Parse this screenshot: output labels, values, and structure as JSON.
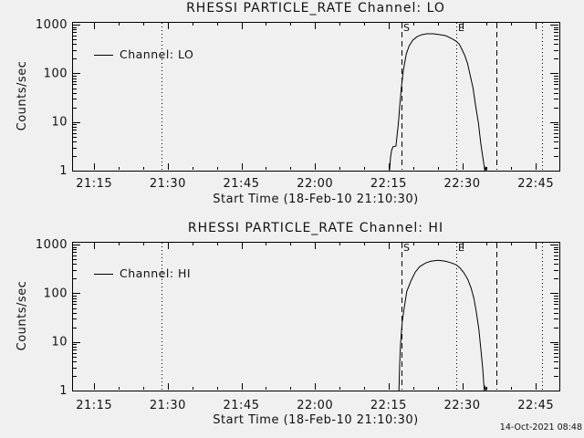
{
  "page": {
    "background_color": "#f0f0f0",
    "line_color": "#000000",
    "timestamp": "14-Oct-2021 08:48"
  },
  "chart_data": [
    {
      "type": "line",
      "title": "RHESSI PARTICLE_RATE Channel: LO",
      "xlabel": "Start Time (18-Feb-10 21:10:30)",
      "ylabel": "Counts/sec",
      "legend": {
        "position": "top-left",
        "label": "Channel: LO"
      },
      "yscale": "log",
      "ylim": [
        1,
        1150
      ],
      "x_minutes_range": [
        0,
        99.3
      ],
      "x_axis_start": "21:10:30",
      "x_ticks": [
        {
          "t": 4.5,
          "label": "21:15"
        },
        {
          "t": 19.5,
          "label": "21:30"
        },
        {
          "t": 34.5,
          "label": "21:45"
        },
        {
          "t": 49.5,
          "label": "22:00"
        },
        {
          "t": 64.5,
          "label": "22:15"
        },
        {
          "t": 79.5,
          "label": "22:30"
        },
        {
          "t": 94.5,
          "label": "22:45"
        }
      ],
      "x_minor_step_min": 5,
      "y_ticks": [
        {
          "v": 1000,
          "label": "1000"
        },
        {
          "v": 100,
          "label": "100"
        },
        {
          "v": 10,
          "label": "10"
        },
        {
          "v": 1,
          "label": "1"
        }
      ],
      "vlines": [
        {
          "t": 18.2,
          "style": "dotted",
          "label": ""
        },
        {
          "t": 67.2,
          "style": "dashed",
          "label": "S"
        },
        {
          "t": 78.2,
          "style": "dotted",
          "label": "E"
        },
        {
          "t": 86.4,
          "style": "dashed",
          "label": ""
        },
        {
          "t": 95.7,
          "style": "dotted",
          "label": ""
        }
      ],
      "series": [
        {
          "name": "Channel: LO",
          "points_min_counts": [
            [
              64.7,
              1
            ],
            [
              64.9,
              1.9
            ],
            [
              65.1,
              2.6
            ],
            [
              65.4,
              3.1
            ],
            [
              66.0,
              3.2
            ],
            [
              66.2,
              5
            ],
            [
              66.5,
              9.5
            ],
            [
              66.8,
              23
            ],
            [
              67.1,
              50
            ],
            [
              67.5,
              115
            ],
            [
              68.1,
              250
            ],
            [
              68.7,
              370
            ],
            [
              69.4,
              480
            ],
            [
              70.3,
              570
            ],
            [
              71.2,
              625
            ],
            [
              72.3,
              655
            ],
            [
              73.6,
              655
            ],
            [
              74.9,
              628
            ],
            [
              76.1,
              600
            ],
            [
              77.0,
              545
            ],
            [
              77.7,
              500
            ],
            [
              78.3,
              457
            ],
            [
              78.9,
              400
            ],
            [
              79.4,
              320
            ],
            [
              80.0,
              238
            ],
            [
              80.6,
              160
            ],
            [
              81.1,
              95
            ],
            [
              81.7,
              50
            ],
            [
              82.2,
              23
            ],
            [
              82.8,
              9.5
            ],
            [
              83.3,
              3.5
            ],
            [
              83.7,
              1.9
            ],
            [
              84.1,
              1
            ],
            [
              84.25,
              1.2
            ],
            [
              84.45,
              1
            ]
          ]
        }
      ]
    },
    {
      "type": "line",
      "title": "RHESSI PARTICLE_RATE Channel: HI",
      "xlabel": "Start Time (18-Feb-10 21:10:30)",
      "ylabel": "Counts/sec",
      "legend": {
        "position": "top-left",
        "label": "Channel: HI"
      },
      "yscale": "log",
      "ylim": [
        1,
        1150
      ],
      "x_minutes_range": [
        0,
        99.3
      ],
      "x_axis_start": "21:10:30",
      "x_ticks": [
        {
          "t": 4.5,
          "label": "21:15"
        },
        {
          "t": 19.5,
          "label": "21:30"
        },
        {
          "t": 34.5,
          "label": "21:45"
        },
        {
          "t": 49.5,
          "label": "22:00"
        },
        {
          "t": 64.5,
          "label": "22:15"
        },
        {
          "t": 79.5,
          "label": "22:30"
        },
        {
          "t": 94.5,
          "label": "22:45"
        }
      ],
      "x_minor_step_min": 5,
      "y_ticks": [
        {
          "v": 1000,
          "label": "1000"
        },
        {
          "v": 100,
          "label": "100"
        },
        {
          "v": 10,
          "label": "10"
        },
        {
          "v": 1,
          "label": "1"
        }
      ],
      "vlines": [
        {
          "t": 18.2,
          "style": "dotted",
          "label": ""
        },
        {
          "t": 67.2,
          "style": "dashed",
          "label": "S"
        },
        {
          "t": 78.2,
          "style": "dotted",
          "label": "E"
        },
        {
          "t": 86.4,
          "style": "dashed",
          "label": ""
        },
        {
          "t": 95.7,
          "style": "dotted",
          "label": ""
        }
      ],
      "series": [
        {
          "name": "Channel: HI",
          "points_min_counts": [
            [
              66.6,
              1
            ],
            [
              66.75,
              3.4
            ],
            [
              66.9,
              8
            ],
            [
              67.1,
              15
            ],
            [
              67.3,
              27
            ],
            [
              67.7,
              52
            ],
            [
              68.2,
              110
            ],
            [
              69.0,
              176
            ],
            [
              69.9,
              270
            ],
            [
              70.8,
              352
            ],
            [
              72.0,
              420
            ],
            [
              73.1,
              458
            ],
            [
              74.6,
              478
            ],
            [
              76.1,
              458
            ],
            [
              77.4,
              420
            ],
            [
              78.3,
              385
            ],
            [
              79.0,
              337
            ],
            [
              79.8,
              270
            ],
            [
              80.6,
              198
            ],
            [
              81.3,
              130
            ],
            [
              81.9,
              78
            ],
            [
              82.4,
              40
            ],
            [
              82.9,
              18
            ],
            [
              83.3,
              7
            ],
            [
              83.7,
              2.7
            ],
            [
              84.0,
              1
            ],
            [
              84.2,
              1.2
            ],
            [
              84.4,
              1
            ]
          ]
        }
      ]
    }
  ]
}
